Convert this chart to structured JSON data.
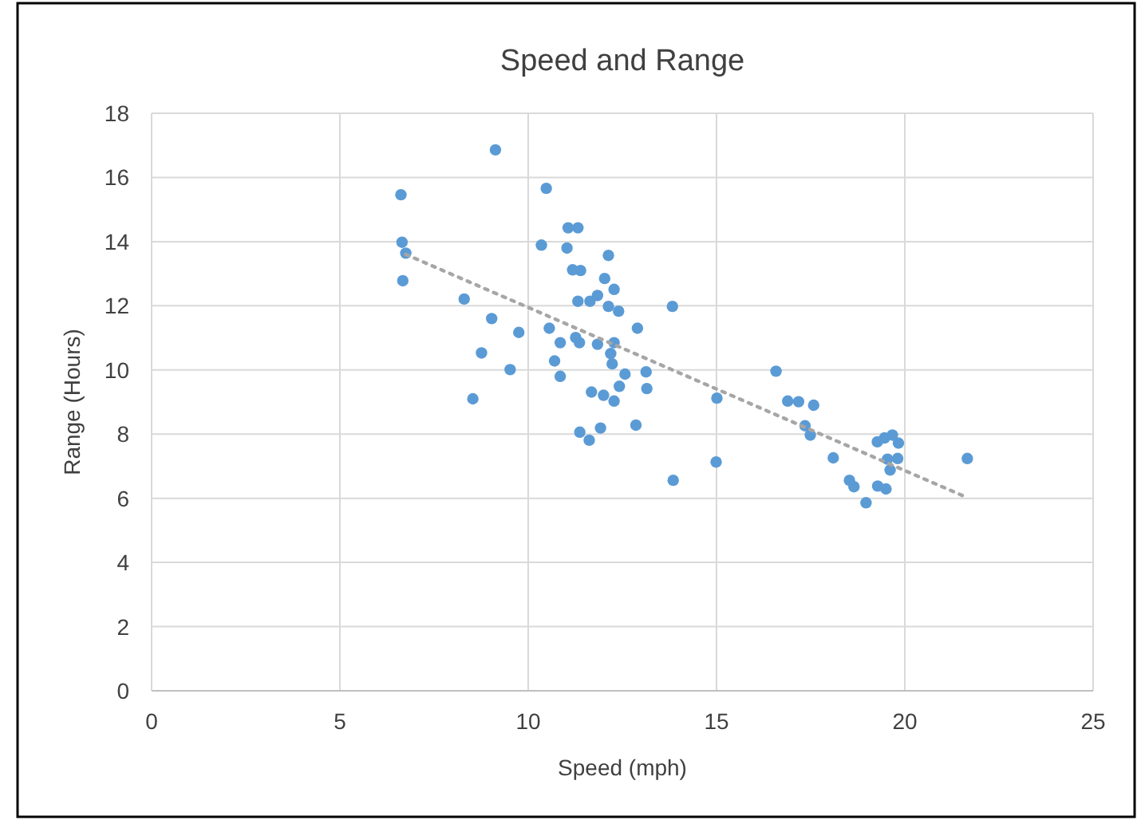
{
  "chart_data": {
    "type": "scatter",
    "title": "Speed and Range",
    "xlabel": "Speed (mph)",
    "ylabel": "Range (Hours)",
    "xlim": [
      0,
      25
    ],
    "xticks": [
      0,
      5,
      10,
      15,
      20,
      25
    ],
    "ylim": [
      0,
      18
    ],
    "yticks": [
      0,
      2,
      4,
      6,
      8,
      10,
      12,
      14,
      16,
      18
    ],
    "grid": true,
    "marker": "circle",
    "series": [
      {
        "color": "#5b9bd5",
        "x": [
          6.62,
          6.65,
          6.75,
          6.67,
          9.13,
          8.3,
          9.03,
          9.75,
          8.76,
          9.52,
          8.53,
          10.48,
          10.35,
          11.06,
          11.32,
          11.03,
          11.18,
          11.39,
          12.13,
          11.32,
          11.64,
          11.84,
          12.03,
          12.28,
          12.13,
          12.4,
          13.83,
          12.9,
          10.56,
          10.85,
          11.26,
          11.36,
          11.84,
          12.28,
          12.19,
          12.23,
          10.7,
          10.85,
          12.57,
          13.13,
          13.15,
          12.42,
          11.68,
          12.0,
          12.28,
          15.01,
          16.58,
          16.89,
          17.18,
          17.58,
          17.35,
          17.49,
          12.86,
          11.92,
          11.37,
          11.62,
          13.85,
          14.99,
          18.1,
          18.53,
          18.65,
          18.97,
          19.27,
          19.46,
          19.67,
          19.83,
          19.54,
          19.81,
          19.61,
          19.28,
          19.5,
          21.66
        ],
        "values": [
          15.46,
          13.98,
          13.64,
          12.78,
          16.86,
          12.21,
          11.6,
          11.17,
          10.53,
          10.01,
          9.1,
          15.66,
          13.89,
          14.43,
          14.43,
          13.8,
          13.12,
          13.1,
          13.57,
          12.14,
          12.14,
          12.32,
          12.85,
          12.51,
          11.98,
          11.83,
          11.98,
          11.3,
          11.3,
          10.85,
          11.01,
          10.85,
          10.8,
          10.85,
          10.51,
          10.19,
          10.28,
          9.8,
          9.87,
          9.94,
          9.42,
          9.49,
          9.31,
          9.21,
          9.03,
          9.12,
          9.96,
          9.03,
          9.01,
          8.9,
          8.26,
          7.97,
          8.28,
          8.19,
          8.06,
          7.81,
          6.56,
          7.13,
          7.26,
          6.56,
          6.36,
          5.86,
          7.76,
          7.88,
          7.97,
          7.72,
          7.22,
          7.24,
          6.88,
          6.38,
          6.29,
          7.24
        ]
      },
      {
        "type": "line",
        "color": "#a6a6a6",
        "line_style": "dotted",
        "marker": "none",
        "x": [
          6.75,
          21.6
        ],
        "values": [
          13.6,
          6.05
        ]
      }
    ]
  }
}
